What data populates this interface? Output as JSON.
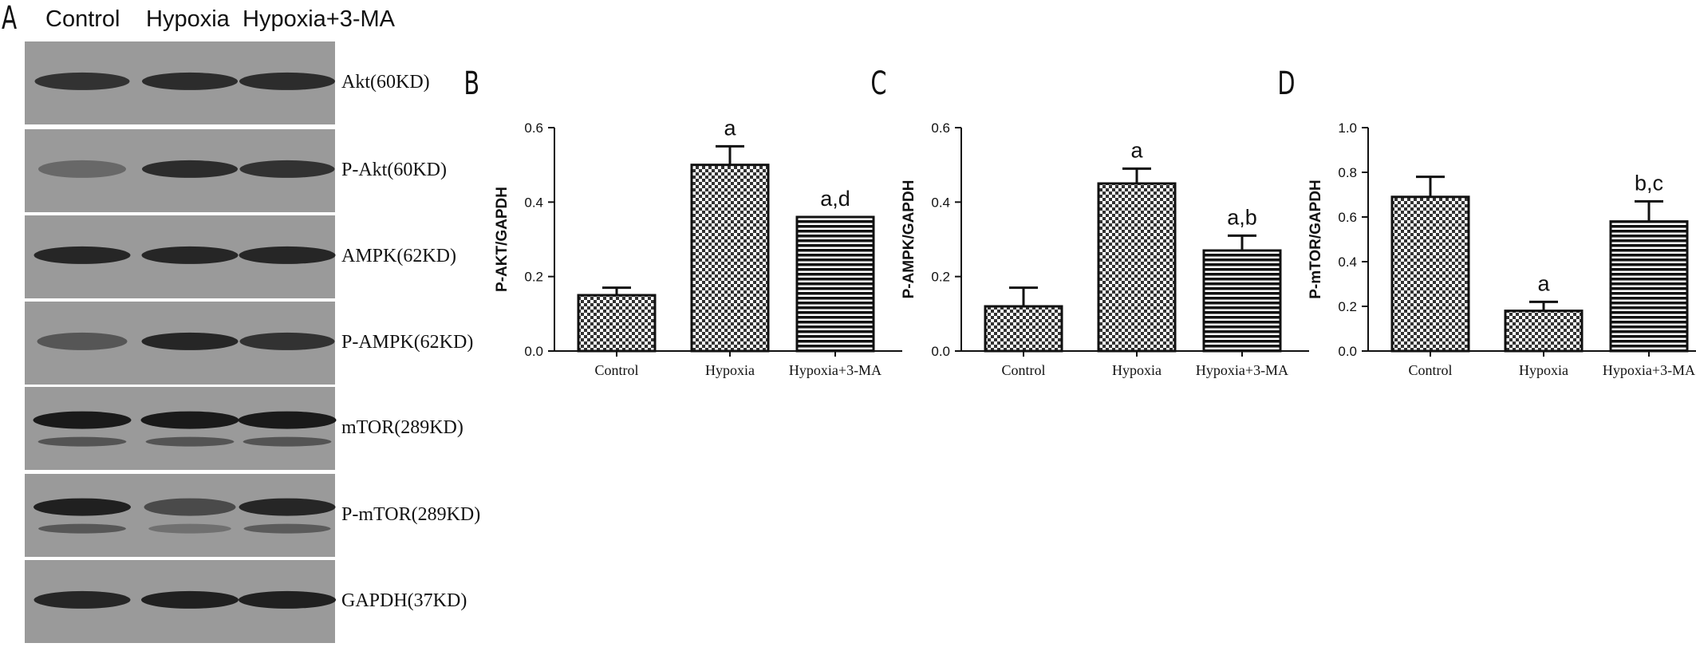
{
  "panel_a": {
    "letter": "A",
    "lanes": [
      "Control",
      "Hypoxia",
      "Hypoxia+3-MA"
    ],
    "blots": [
      {
        "label": "Akt(60KD)",
        "intensity": [
          0.75,
          0.8,
          0.8
        ],
        "double": false
      },
      {
        "label": "P-Akt(60KD)",
        "intensity": [
          0.3,
          0.8,
          0.75
        ],
        "double": false
      },
      {
        "label": "AMPK(62KD)",
        "intensity": [
          0.85,
          0.85,
          0.85
        ],
        "double": false
      },
      {
        "label": "P-AMPK(62KD)",
        "intensity": [
          0.45,
          0.85,
          0.75
        ],
        "double": false
      },
      {
        "label": "mTOR(289KD)",
        "intensity": [
          0.95,
          0.95,
          0.95
        ],
        "double": true
      },
      {
        "label": "P-mTOR(289KD)",
        "intensity": [
          0.9,
          0.55,
          0.85
        ],
        "double": true
      },
      {
        "label": "GAPDH(37KD)",
        "intensity": [
          0.85,
          0.9,
          0.9
        ],
        "double": false
      }
    ]
  },
  "chart_data": [
    {
      "type": "bar",
      "letter": "B",
      "categories": [
        "Control",
        "Hypoxia",
        "Hypoxia+3-MA"
      ],
      "values": [
        0.15,
        0.5,
        0.36
      ],
      "errors": [
        0.02,
        0.05,
        0.0
      ],
      "annotations": [
        "",
        "a",
        "a,d"
      ],
      "patterns": [
        "checker",
        "checker",
        "stripes"
      ],
      "ylabel": "P-AKT/GAPDH",
      "ylim": [
        0,
        0.6
      ],
      "yticks": [
        "0.0",
        "0.2",
        "0.4",
        "0.6"
      ]
    },
    {
      "type": "bar",
      "letter": "C",
      "categories": [
        "Control",
        "Hypoxia",
        "Hypoxia+3-MA"
      ],
      "values": [
        0.12,
        0.45,
        0.27
      ],
      "errors": [
        0.05,
        0.04,
        0.04
      ],
      "annotations": [
        "",
        "a",
        "a,b"
      ],
      "patterns": [
        "checker",
        "checker",
        "stripes"
      ],
      "ylabel": "P-AMPK/GAPDH",
      "ylim": [
        0,
        0.6
      ],
      "yticks": [
        "0.0",
        "0.2",
        "0.4",
        "0.6"
      ]
    },
    {
      "type": "bar",
      "letter": "D",
      "categories": [
        "Control",
        "Hypoxia",
        "Hypoxia+3-MA"
      ],
      "values": [
        0.69,
        0.18,
        0.58
      ],
      "errors": [
        0.09,
        0.04,
        0.09
      ],
      "annotations": [
        "",
        "a",
        "b,c"
      ],
      "patterns": [
        "checker",
        "checker",
        "stripes"
      ],
      "ylabel": "P-mTOR/GAPDH",
      "ylim": [
        0,
        1.0
      ],
      "yticks": [
        "0.0",
        "0.2",
        "0.4",
        "0.6",
        "0.8",
        "1.0"
      ]
    }
  ]
}
